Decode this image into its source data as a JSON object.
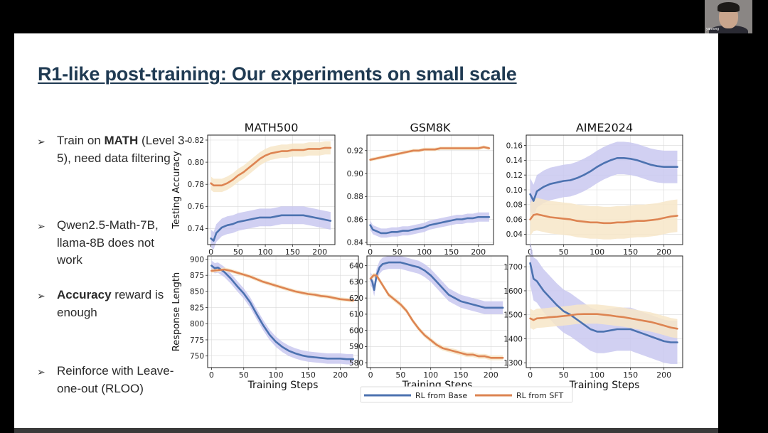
{
  "slide": {
    "title": "R1-like post-training: Our experiments on small scale",
    "bullets": [
      {
        "bold": "",
        "prefix": "Train on ",
        "strong": "MATH",
        "rest": " (Level 3-5), need data filtering"
      },
      {
        "prefix": "Qwen2.5-Math-7B, llama-8B does not work",
        "strong": "",
        "rest": ""
      },
      {
        "prefix": "",
        "strong": "Accuracy",
        "rest": " reward is enough"
      },
      {
        "prefix": "Reinforce with Leave-one-out (RLOO)",
        "strong": "",
        "rest": ""
      }
    ],
    "webcam_name": "yanrong"
  },
  "colors": {
    "base": "#4c72b0",
    "base_band": "#c9c8f0",
    "sft": "#dd8452",
    "sft_band": "#f7e6c8",
    "title": "#1f3a52"
  },
  "chart_data": [
    {
      "type": "line",
      "title": "MATH500",
      "xlabel": "Training Steps",
      "ylabel": "Testing Accuracy",
      "xlim": [
        -6,
        228
      ],
      "ylim": [
        0.7255,
        0.8245
      ],
      "xticks": [
        0,
        50,
        100,
        150,
        200
      ],
      "yticks": [
        0.74,
        0.76,
        0.78,
        0.8,
        0.82
      ],
      "yticklabels": [
        "0.74",
        "0.76",
        "0.78",
        "0.80",
        "0.82"
      ],
      "series": [
        {
          "name": "RL from Base",
          "band": 0.008,
          "x": [
            0,
            5,
            10,
            20,
            30,
            40,
            50,
            60,
            70,
            80,
            90,
            100,
            110,
            120,
            130,
            140,
            150,
            160,
            170,
            180,
            190,
            200,
            210,
            220
          ],
          "y": [
            0.731,
            0.729,
            0.736,
            0.741,
            0.743,
            0.744,
            0.746,
            0.747,
            0.748,
            0.749,
            0.75,
            0.75,
            0.75,
            0.751,
            0.752,
            0.752,
            0.752,
            0.752,
            0.752,
            0.751,
            0.75,
            0.749,
            0.748,
            0.747
          ]
        },
        {
          "name": "RL from SFT",
          "band": 0.006,
          "x": [
            0,
            5,
            10,
            20,
            30,
            40,
            50,
            60,
            70,
            80,
            90,
            100,
            110,
            120,
            130,
            140,
            150,
            160,
            170,
            180,
            190,
            200,
            210,
            220
          ],
          "y": [
            0.781,
            0.779,
            0.779,
            0.779,
            0.781,
            0.784,
            0.788,
            0.791,
            0.795,
            0.799,
            0.803,
            0.806,
            0.808,
            0.809,
            0.81,
            0.81,
            0.811,
            0.811,
            0.811,
            0.812,
            0.812,
            0.812,
            0.813,
            0.813
          ]
        }
      ]
    },
    {
      "type": "line",
      "title": "GSM8K",
      "xlabel": "Training Steps",
      "ylabel": "",
      "xlim": [
        -6,
        228
      ],
      "ylim": [
        0.838,
        0.9335
      ],
      "xticks": [
        0,
        50,
        100,
        150,
        200
      ],
      "yticks": [
        0.84,
        0.86,
        0.88,
        0.9,
        0.92
      ],
      "yticklabels": [
        "0.84",
        "0.86",
        "0.88",
        "0.90",
        "0.92"
      ],
      "series": [
        {
          "name": "RL from Base",
          "band": 0.004,
          "x": [
            0,
            5,
            10,
            20,
            30,
            40,
            50,
            60,
            70,
            80,
            90,
            100,
            110,
            120,
            130,
            140,
            150,
            160,
            170,
            180,
            190,
            200,
            210,
            220
          ],
          "y": [
            0.855,
            0.851,
            0.85,
            0.848,
            0.848,
            0.849,
            0.849,
            0.85,
            0.85,
            0.851,
            0.852,
            0.853,
            0.855,
            0.856,
            0.857,
            0.858,
            0.859,
            0.86,
            0.86,
            0.861,
            0.861,
            0.862,
            0.862,
            0.862
          ]
        },
        {
          "name": "RL from SFT",
          "band": 0.0015,
          "x": [
            0,
            10,
            20,
            30,
            40,
            50,
            60,
            70,
            80,
            90,
            100,
            110,
            120,
            130,
            140,
            150,
            160,
            170,
            180,
            190,
            200,
            210,
            220
          ],
          "y": [
            0.912,
            0.913,
            0.914,
            0.915,
            0.916,
            0.917,
            0.918,
            0.919,
            0.92,
            0.92,
            0.921,
            0.921,
            0.921,
            0.922,
            0.922,
            0.922,
            0.922,
            0.922,
            0.922,
            0.922,
            0.922,
            0.923,
            0.922
          ]
        }
      ]
    },
    {
      "type": "line",
      "title": "AIME2024",
      "xlabel": "Training Steps",
      "ylabel": "",
      "xlim": [
        -6,
        228
      ],
      "ylim": [
        0.026,
        0.174
      ],
      "xticks": [
        0,
        50,
        100,
        150,
        200
      ],
      "yticks": [
        0.04,
        0.06,
        0.08,
        0.1,
        0.12,
        0.14,
        0.16
      ],
      "yticklabels": [
        "0.04",
        "0.06",
        "0.08",
        "0.10",
        "0.12",
        "0.14",
        "0.16"
      ],
      "series": [
        {
          "name": "RL from Base",
          "band": 0.022,
          "x": [
            0,
            5,
            10,
            20,
            30,
            40,
            50,
            60,
            70,
            80,
            90,
            100,
            110,
            120,
            130,
            140,
            150,
            160,
            170,
            180,
            190,
            200,
            210,
            220
          ],
          "y": [
            0.094,
            0.085,
            0.098,
            0.104,
            0.108,
            0.11,
            0.112,
            0.113,
            0.116,
            0.12,
            0.125,
            0.131,
            0.136,
            0.14,
            0.143,
            0.143,
            0.142,
            0.14,
            0.137,
            0.134,
            0.132,
            0.131,
            0.131,
            0.131
          ]
        },
        {
          "name": "RL from SFT",
          "band": 0.022,
          "x": [
            0,
            5,
            10,
            20,
            30,
            40,
            50,
            60,
            70,
            80,
            90,
            100,
            110,
            120,
            130,
            140,
            150,
            160,
            170,
            180,
            190,
            200,
            210,
            220
          ],
          "y": [
            0.06,
            0.066,
            0.067,
            0.065,
            0.063,
            0.062,
            0.061,
            0.06,
            0.058,
            0.057,
            0.056,
            0.056,
            0.055,
            0.055,
            0.056,
            0.056,
            0.057,
            0.058,
            0.058,
            0.059,
            0.06,
            0.062,
            0.064,
            0.065
          ]
        }
      ]
    },
    {
      "type": "line",
      "title": "",
      "xlabel": "Training Steps",
      "ylabel": "Response Length",
      "xlim": [
        -6,
        228
      ],
      "ylim": [
        732,
        905
      ],
      "xticks": [
        0,
        50,
        100,
        150,
        200
      ],
      "yticks": [
        750,
        775,
        800,
        825,
        850,
        875,
        900
      ],
      "yticklabels": [
        "750",
        "775",
        "800",
        "825",
        "850",
        "875",
        "900"
      ],
      "series": [
        {
          "name": "RL from Base",
          "band": 8,
          "x": [
            0,
            5,
            10,
            20,
            30,
            40,
            50,
            60,
            70,
            80,
            90,
            100,
            110,
            120,
            130,
            140,
            150,
            160,
            170,
            180,
            190,
            200,
            210,
            220
          ],
          "y": [
            890,
            886,
            887,
            880,
            870,
            858,
            847,
            833,
            815,
            798,
            783,
            772,
            764,
            758,
            754,
            751,
            749,
            748,
            747,
            746,
            746,
            746,
            745,
            745
          ]
        },
        {
          "name": "RL from SFT",
          "band": 3,
          "x": [
            0,
            10,
            20,
            30,
            40,
            50,
            60,
            70,
            80,
            90,
            100,
            110,
            120,
            130,
            140,
            150,
            160,
            170,
            180,
            190,
            200,
            210,
            220
          ],
          "y": [
            882,
            883,
            884,
            882,
            879,
            876,
            873,
            869,
            865,
            862,
            859,
            856,
            853,
            850,
            848,
            846,
            845,
            843,
            842,
            840,
            838,
            837,
            836
          ]
        }
      ]
    },
    {
      "type": "line",
      "title": "",
      "xlabel": "Training Steps",
      "ylabel": "",
      "xlim": [
        -6,
        228
      ],
      "ylim": [
        577,
        646
      ],
      "xticks": [
        0,
        50,
        100,
        150,
        200
      ],
      "yticks": [
        580,
        590,
        600,
        610,
        620,
        630,
        640
      ],
      "yticklabels": [
        "580",
        "590",
        "600",
        "610",
        "620",
        "630",
        "640"
      ],
      "series": [
        {
          "name": "RL from Base",
          "band": 4,
          "x": [
            0,
            3,
            6,
            10,
            15,
            20,
            30,
            40,
            50,
            60,
            70,
            80,
            90,
            100,
            110,
            120,
            130,
            140,
            150,
            160,
            170,
            180,
            190,
            200,
            210,
            220
          ],
          "y": [
            632,
            630,
            625,
            634,
            639,
            641,
            642,
            642,
            642,
            641,
            640,
            639,
            637,
            634,
            630,
            626,
            622,
            620,
            618,
            617,
            616,
            615,
            614,
            614,
            614,
            614
          ]
        },
        {
          "name": "RL from SFT",
          "band": 1.5,
          "x": [
            0,
            5,
            10,
            20,
            30,
            40,
            50,
            60,
            70,
            80,
            90,
            100,
            110,
            120,
            130,
            140,
            150,
            160,
            170,
            180,
            190,
            200,
            210,
            220
          ],
          "y": [
            632,
            634,
            634,
            628,
            622,
            619,
            616,
            612,
            606,
            601,
            597,
            594,
            591,
            589,
            588,
            587,
            586,
            585,
            585,
            584,
            584,
            583,
            583,
            583
          ]
        }
      ]
    },
    {
      "type": "line",
      "title": "",
      "xlabel": "Training Steps",
      "ylabel": "",
      "xlim": [
        -6,
        228
      ],
      "ylim": [
        1280,
        1745
      ],
      "xticks": [
        0,
        50,
        100,
        150,
        200
      ],
      "yticks": [
        1300,
        1400,
        1500,
        1600,
        1700
      ],
      "yticklabels": [
        "1300",
        "1400",
        "1500",
        "1600",
        "1700"
      ],
      "series": [
        {
          "name": "RL from Base",
          "band": 90,
          "x": [
            0,
            5,
            10,
            20,
            30,
            40,
            50,
            60,
            70,
            80,
            90,
            100,
            110,
            120,
            130,
            140,
            150,
            160,
            170,
            180,
            190,
            200,
            210,
            220
          ],
          "y": [
            1715,
            1650,
            1640,
            1600,
            1570,
            1540,
            1515,
            1500,
            1480,
            1460,
            1440,
            1430,
            1430,
            1435,
            1440,
            1440,
            1440,
            1430,
            1420,
            1410,
            1400,
            1390,
            1385,
            1385
          ]
        },
        {
          "name": "RL from SFT",
          "band": 40,
          "x": [
            0,
            5,
            10,
            20,
            30,
            40,
            50,
            60,
            70,
            80,
            90,
            100,
            110,
            120,
            130,
            140,
            150,
            160,
            170,
            180,
            190,
            200,
            210,
            220
          ],
          "y": [
            1485,
            1478,
            1485,
            1487,
            1490,
            1492,
            1495,
            1498,
            1502,
            1503,
            1503,
            1503,
            1500,
            1497,
            1493,
            1490,
            1485,
            1480,
            1475,
            1470,
            1463,
            1455,
            1447,
            1442
          ]
        }
      ]
    }
  ],
  "legend": {
    "items": [
      "RL from Base",
      "RL from SFT"
    ]
  }
}
